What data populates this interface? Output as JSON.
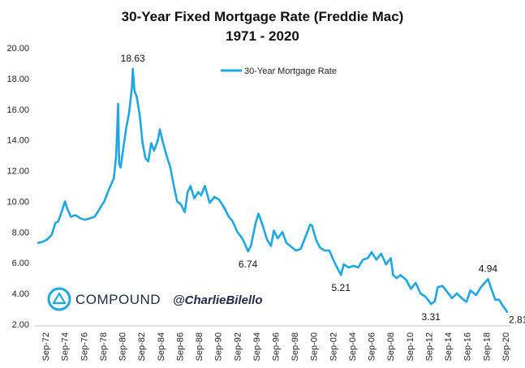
{
  "chart_data": {
    "type": "line",
    "title": "30-Year Fixed Mortgage Rate (Freddie Mac)",
    "subtitle": "1971 - 2020",
    "xlabel": "",
    "ylabel": "",
    "ylim": [
      2.0,
      20.0
    ],
    "xlim": [
      1971.9,
      2021.1
    ],
    "yticks": [
      "2.00",
      "4.00",
      "6.00",
      "8.00",
      "10.00",
      "12.00",
      "14.00",
      "16.00",
      "18.00",
      "20.00"
    ],
    "xticks": [
      "Sep-72",
      "Sep-74",
      "Sep-76",
      "Sep-78",
      "Sep-80",
      "Sep-82",
      "Sep-84",
      "Sep-86",
      "Sep-88",
      "Sep-90",
      "Sep-92",
      "Sep-94",
      "Sep-96",
      "Sep-98",
      "Sep-00",
      "Sep-02",
      "Sep-04",
      "Sep-06",
      "Sep-08",
      "Sep-10",
      "Sep-12",
      "Sep-14",
      "Sep-16",
      "Sep-18",
      "Sep-20"
    ],
    "grid": false,
    "legend_position": "top-center",
    "series": [
      {
        "name": "30-Year Mortgage Rate",
        "color": "#1ea7e0",
        "points": [
          [
            1971.9,
            7.3
          ],
          [
            1972.3,
            7.35
          ],
          [
            1972.8,
            7.5
          ],
          [
            1973.3,
            7.8
          ],
          [
            1973.7,
            8.6
          ],
          [
            1974.0,
            8.7
          ],
          [
            1974.4,
            9.4
          ],
          [
            1974.7,
            10.0
          ],
          [
            1974.9,
            9.6
          ],
          [
            1975.3,
            9.0
          ],
          [
            1975.8,
            9.1
          ],
          [
            1976.3,
            8.9
          ],
          [
            1976.8,
            8.8
          ],
          [
            1977.3,
            8.9
          ],
          [
            1977.8,
            9.0
          ],
          [
            1978.3,
            9.5
          ],
          [
            1978.8,
            10.0
          ],
          [
            1979.3,
            10.8
          ],
          [
            1979.8,
            11.5
          ],
          [
            1980.05,
            13.0
          ],
          [
            1980.25,
            16.35
          ],
          [
            1980.35,
            12.5
          ],
          [
            1980.5,
            12.2
          ],
          [
            1980.8,
            13.5
          ],
          [
            1981.1,
            14.8
          ],
          [
            1981.4,
            15.8
          ],
          [
            1981.7,
            17.5
          ],
          [
            1981.78,
            18.63
          ],
          [
            1981.95,
            17.2
          ],
          [
            1982.2,
            16.8
          ],
          [
            1982.5,
            15.6
          ],
          [
            1982.8,
            13.8
          ],
          [
            1983.1,
            12.8
          ],
          [
            1983.4,
            12.6
          ],
          [
            1983.7,
            13.8
          ],
          [
            1984.0,
            13.3
          ],
          [
            1984.4,
            14.0
          ],
          [
            1984.6,
            14.7
          ],
          [
            1984.9,
            13.9
          ],
          [
            1985.3,
            13.0
          ],
          [
            1985.7,
            12.2
          ],
          [
            1986.0,
            11.2
          ],
          [
            1986.4,
            10.0
          ],
          [
            1986.8,
            9.8
          ],
          [
            1987.2,
            9.3
          ],
          [
            1987.5,
            10.6
          ],
          [
            1987.8,
            11.0
          ],
          [
            1988.2,
            10.2
          ],
          [
            1988.6,
            10.6
          ],
          [
            1988.9,
            10.4
          ],
          [
            1989.3,
            11.0
          ],
          [
            1989.8,
            9.9
          ],
          [
            1990.3,
            10.3
          ],
          [
            1990.8,
            10.1
          ],
          [
            1991.3,
            9.6
          ],
          [
            1991.8,
            9.0
          ],
          [
            1992.2,
            8.7
          ],
          [
            1992.7,
            8.0
          ],
          [
            1993.2,
            7.6
          ],
          [
            1993.5,
            7.2
          ],
          [
            1993.8,
            6.74
          ],
          [
            1994.1,
            7.1
          ],
          [
            1994.6,
            8.6
          ],
          [
            1994.9,
            9.2
          ],
          [
            1995.3,
            8.5
          ],
          [
            1995.8,
            7.5
          ],
          [
            1996.2,
            7.1
          ],
          [
            1996.5,
            8.1
          ],
          [
            1996.9,
            7.6
          ],
          [
            1997.4,
            8.0
          ],
          [
            1997.8,
            7.3
          ],
          [
            1998.4,
            7.0
          ],
          [
            1998.8,
            6.8
          ],
          [
            1999.3,
            6.9
          ],
          [
            1999.8,
            7.7
          ],
          [
            2000.3,
            8.5
          ],
          [
            2000.5,
            8.4
          ],
          [
            2000.9,
            7.5
          ],
          [
            2001.3,
            7.0
          ],
          [
            2001.8,
            6.8
          ],
          [
            2002.3,
            6.8
          ],
          [
            2002.7,
            6.2
          ],
          [
            2003.1,
            5.7
          ],
          [
            2003.5,
            5.21
          ],
          [
            2003.8,
            5.9
          ],
          [
            2004.3,
            5.7
          ],
          [
            2004.8,
            5.8
          ],
          [
            2005.3,
            5.7
          ],
          [
            2005.8,
            6.2
          ],
          [
            2006.3,
            6.3
          ],
          [
            2006.7,
            6.7
          ],
          [
            2007.2,
            6.2
          ],
          [
            2007.7,
            6.6
          ],
          [
            2008.2,
            5.9
          ],
          [
            2008.7,
            6.3
          ],
          [
            2008.95,
            5.2
          ],
          [
            2009.3,
            5.0
          ],
          [
            2009.7,
            5.2
          ],
          [
            2010.3,
            4.9
          ],
          [
            2010.8,
            4.3
          ],
          [
            2011.3,
            4.7
          ],
          [
            2011.8,
            4.0
          ],
          [
            2012.3,
            3.8
          ],
          [
            2012.7,
            3.5
          ],
          [
            2012.9,
            3.31
          ],
          [
            2013.3,
            3.5
          ],
          [
            2013.6,
            4.4
          ],
          [
            2014.1,
            4.5
          ],
          [
            2014.6,
            4.1
          ],
          [
            2015.1,
            3.7
          ],
          [
            2015.6,
            4.0
          ],
          [
            2016.1,
            3.7
          ],
          [
            2016.6,
            3.45
          ],
          [
            2017.0,
            4.2
          ],
          [
            2017.6,
            3.9
          ],
          [
            2018.1,
            4.4
          ],
          [
            2018.85,
            4.94
          ],
          [
            2019.2,
            4.3
          ],
          [
            2019.6,
            3.6
          ],
          [
            2020.0,
            3.6
          ],
          [
            2020.4,
            3.2
          ],
          [
            2020.85,
            2.81
          ]
        ]
      }
    ],
    "annotations": [
      {
        "label": "18.63",
        "x": 1981.78,
        "y": 18.63,
        "position": "above"
      },
      {
        "label": "6.74",
        "x": 1993.8,
        "y": 6.74,
        "position": "below"
      },
      {
        "label": "5.21",
        "x": 2003.5,
        "y": 5.21,
        "position": "below"
      },
      {
        "label": "3.31",
        "x": 2012.9,
        "y": 3.31,
        "position": "below"
      },
      {
        "label": "4.94",
        "x": 2018.85,
        "y": 4.94,
        "position": "above"
      },
      {
        "label": "2.81",
        "x": 2020.85,
        "y": 2.81,
        "position": "right"
      }
    ]
  },
  "branding": {
    "logo_name": "compound-logo-icon",
    "company": "COMPOUND",
    "handle": "@CharlieBilello",
    "brand_color": "#1ea7e0"
  }
}
